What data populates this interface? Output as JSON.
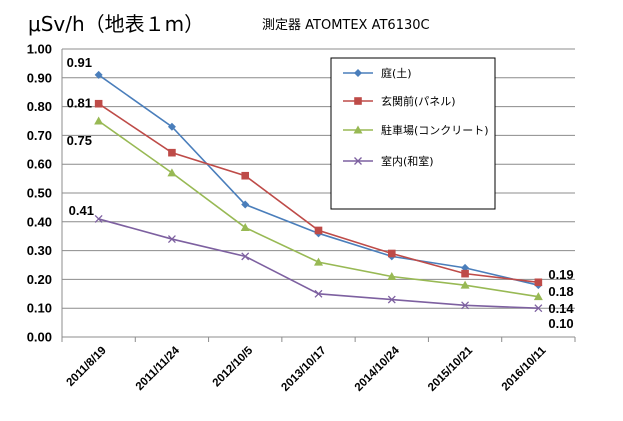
{
  "header": {
    "unit_title": "μSv/h（地表１m）",
    "device_title": "測定器 ATOMTEX AT6130C"
  },
  "chart_data": {
    "type": "line",
    "title": "",
    "xlabel": "",
    "ylabel": "μSv/h（地表１m）",
    "ylim": [
      0,
      1.0
    ],
    "ytick_step": 0.1,
    "yticks": [
      "0.00",
      "0.10",
      "0.20",
      "0.30",
      "0.40",
      "0.50",
      "0.60",
      "0.70",
      "0.80",
      "0.90",
      "1.00"
    ],
    "grid": "horizontal",
    "legend_position": "top-right",
    "categories": [
      "2011/8/19",
      "2011/11/24",
      "2012/10/5",
      "2013/10/17",
      "2014/10/24",
      "2015/10/21",
      "2016/10/11"
    ],
    "series": [
      {
        "name": "庭(土)",
        "color": "#4a7ebb",
        "marker": "diamond",
        "values": [
          0.91,
          0.73,
          0.46,
          0.36,
          0.28,
          0.24,
          0.18
        ]
      },
      {
        "name": "玄関前(パネル)",
        "color": "#be4b48",
        "marker": "square",
        "values": [
          0.81,
          0.64,
          0.56,
          0.37,
          0.29,
          0.22,
          0.19
        ]
      },
      {
        "name": "駐車場(コンクリート)",
        "color": "#98b954",
        "marker": "triangle",
        "values": [
          0.75,
          0.57,
          0.38,
          0.26,
          0.21,
          0.18,
          0.14
        ]
      },
      {
        "name": "室内(和室)",
        "color": "#7d60a0",
        "marker": "x",
        "values": [
          0.41,
          0.34,
          0.28,
          0.15,
          0.13,
          0.11,
          0.1
        ]
      }
    ],
    "data_labels": [
      "0.91",
      "0.81",
      "0.75",
      "0.41",
      "0.19",
      "0.18",
      "0.14",
      "0.10"
    ]
  }
}
